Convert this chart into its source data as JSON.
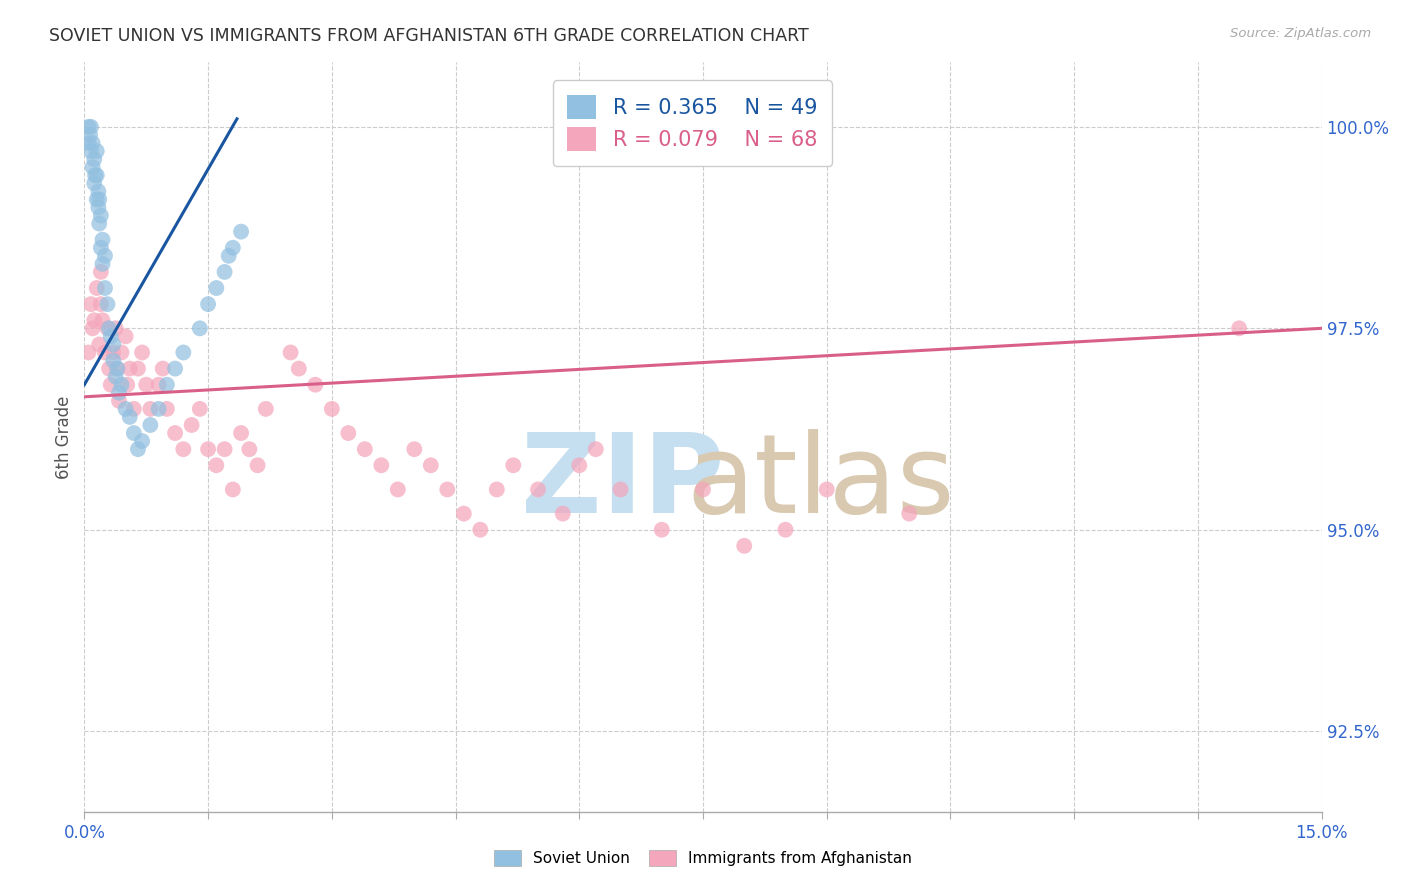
{
  "title": "SOVIET UNION VS IMMIGRANTS FROM AFGHANISTAN 6TH GRADE CORRELATION CHART",
  "source": "Source: ZipAtlas.com",
  "ylabel": "6th Grade",
  "xmin": 0.0,
  "xmax": 15.0,
  "ymin": 91.5,
  "ymax": 100.8,
  "yticks": [
    92.5,
    95.0,
    97.5,
    100.0
  ],
  "ytick_labels": [
    "92.5%",
    "95.0%",
    "97.5%",
    "100.0%"
  ],
  "legend_r1": "R = 0.365",
  "legend_n1": "N = 49",
  "legend_r2": "R = 0.079",
  "legend_n2": "N = 68",
  "blue_color": "#92c0e0",
  "pink_color": "#f4a6bc",
  "trendline_blue": "#1a56a0",
  "trendline_pink": "#d95f8a",
  "watermark_zip_color": "#c5dff0",
  "watermark_atlas_color": "#d8c9b0",
  "su_x": [
    0.05,
    0.05,
    0.07,
    0.08,
    0.08,
    0.1,
    0.1,
    0.12,
    0.12,
    0.13,
    0.15,
    0.15,
    0.15,
    0.17,
    0.17,
    0.18,
    0.18,
    0.2,
    0.2,
    0.22,
    0.22,
    0.25,
    0.25,
    0.28,
    0.3,
    0.32,
    0.35,
    0.35,
    0.38,
    0.4,
    0.42,
    0.45,
    0.5,
    0.55,
    0.6,
    0.65,
    0.7,
    0.8,
    0.9,
    1.0,
    1.1,
    1.2,
    1.4,
    1.5,
    1.6,
    1.7,
    1.75,
    1.8,
    1.9
  ],
  "su_y": [
    99.8,
    100.0,
    99.9,
    99.7,
    100.0,
    99.5,
    99.8,
    99.3,
    99.6,
    99.4,
    99.1,
    99.4,
    99.7,
    99.0,
    99.2,
    98.8,
    99.1,
    98.5,
    98.9,
    98.3,
    98.6,
    98.0,
    98.4,
    97.8,
    97.5,
    97.4,
    97.1,
    97.3,
    96.9,
    97.0,
    96.7,
    96.8,
    96.5,
    96.4,
    96.2,
    96.0,
    96.1,
    96.3,
    96.5,
    96.8,
    97.0,
    97.2,
    97.5,
    97.8,
    98.0,
    98.2,
    98.4,
    98.5,
    98.7
  ],
  "af_x": [
    0.05,
    0.08,
    0.1,
    0.12,
    0.15,
    0.18,
    0.2,
    0.2,
    0.22,
    0.25,
    0.28,
    0.3,
    0.32,
    0.35,
    0.38,
    0.4,
    0.42,
    0.45,
    0.5,
    0.52,
    0.55,
    0.6,
    0.65,
    0.7,
    0.75,
    0.8,
    0.9,
    0.95,
    1.0,
    1.1,
    1.2,
    1.3,
    1.4,
    1.5,
    1.6,
    1.7,
    1.8,
    1.9,
    2.0,
    2.1,
    2.2,
    2.5,
    2.6,
    2.8,
    3.0,
    3.2,
    3.4,
    3.6,
    3.8,
    4.0,
    4.2,
    4.4,
    4.6,
    4.8,
    5.0,
    5.2,
    5.5,
    5.8,
    6.0,
    6.2,
    6.5,
    7.0,
    7.5,
    8.0,
    8.5,
    9.0,
    10.0,
    14.0
  ],
  "af_y": [
    97.2,
    97.8,
    97.5,
    97.6,
    98.0,
    97.3,
    97.8,
    98.2,
    97.6,
    97.2,
    97.5,
    97.0,
    96.8,
    97.2,
    97.5,
    97.0,
    96.6,
    97.2,
    97.4,
    96.8,
    97.0,
    96.5,
    97.0,
    97.2,
    96.8,
    96.5,
    96.8,
    97.0,
    96.5,
    96.2,
    96.0,
    96.3,
    96.5,
    96.0,
    95.8,
    96.0,
    95.5,
    96.2,
    96.0,
    95.8,
    96.5,
    97.2,
    97.0,
    96.8,
    96.5,
    96.2,
    96.0,
    95.8,
    95.5,
    96.0,
    95.8,
    95.5,
    95.2,
    95.0,
    95.5,
    95.8,
    95.5,
    95.2,
    95.8,
    96.0,
    95.5,
    95.0,
    95.5,
    94.8,
    95.0,
    95.5,
    95.2,
    97.5
  ],
  "su_trend_x": [
    0.0,
    1.85
  ],
  "su_trend_y": [
    96.8,
    100.1
  ],
  "af_trend_x": [
    0.0,
    15.0
  ],
  "af_trend_y": [
    96.65,
    97.5
  ],
  "xtick_positions": [
    0.0,
    1.5,
    3.0,
    4.5,
    6.0,
    7.5,
    9.0,
    10.5,
    12.0,
    13.5,
    15.0
  ],
  "background_color": "#ffffff",
  "grid_color": "#cccccc",
  "spine_color": "#aaaaaa",
  "title_color": "#333333",
  "source_color": "#aaaaaa",
  "ylabel_color": "#555555",
  "tick_color": "#3366cc",
  "legend_edge_color": "#cccccc"
}
